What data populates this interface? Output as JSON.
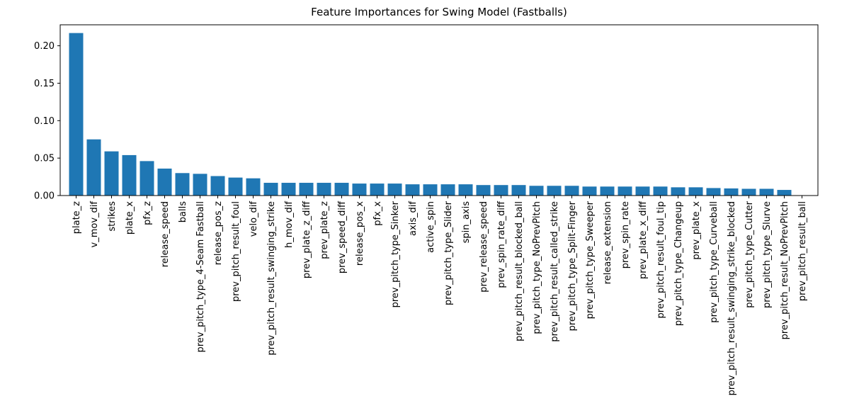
{
  "chart_data": {
    "type": "bar",
    "title": "Feature Importances for Swing Model (Fastballs)",
    "xlabel": "",
    "ylabel": "",
    "ylim": [
      0,
      0.228
    ],
    "yticks": [
      "0.00",
      "0.05",
      "0.10",
      "0.15",
      "0.20"
    ],
    "grid": false,
    "bar_color": "#1f77b4",
    "categories": [
      "plate_z",
      "v_mov_dif",
      "strikes",
      "plate_x",
      "pfx_z",
      "release_speed",
      "balls",
      "prev_pitch_type_4-Seam Fastball",
      "release_pos_z",
      "prev_pitch_result_foul",
      "velo_dif",
      "prev_pitch_result_swinging_strike",
      "h_mov_dif",
      "prev_plate_z_diff",
      "prev_plate_z",
      "prev_speed_diff",
      "release_pos_x",
      "pfx_x",
      "prev_pitch_type_Sinker",
      "axis_dif",
      "active_spin",
      "prev_pitch_type_Slider",
      "spin_axis",
      "prev_release_speed",
      "prev_spin_rate_diff",
      "prev_pitch_result_blocked_ball",
      "prev_pitch_type_NoPrevPitch",
      "prev_pitch_result_called_strike",
      "prev_pitch_type_Split-Finger",
      "prev_pitch_type_Sweeper",
      "release_extension",
      "prev_spin_rate",
      "prev_plate_x_diff",
      "prev_pitch_result_foul_tip",
      "prev_pitch_type_Changeup",
      "prev_plate_x",
      "prev_pitch_type_Curveball",
      "prev_pitch_result_swinging_strike_blocked",
      "prev_pitch_type_Cutter",
      "prev_pitch_type_Slurve",
      "prev_pitch_result_NoPrevPitch",
      "prev_pitch_result_ball"
    ],
    "values": [
      0.217,
      0.075,
      0.059,
      0.054,
      0.046,
      0.036,
      0.03,
      0.029,
      0.026,
      0.024,
      0.023,
      0.017,
      0.017,
      0.017,
      0.017,
      0.017,
      0.016,
      0.016,
      0.016,
      0.015,
      0.015,
      0.015,
      0.015,
      0.014,
      0.014,
      0.014,
      0.013,
      0.013,
      0.013,
      0.012,
      0.012,
      0.012,
      0.012,
      0.012,
      0.011,
      0.011,
      0.01,
      0.0095,
      0.009,
      0.009,
      0.0075,
      0.0003
    ]
  }
}
